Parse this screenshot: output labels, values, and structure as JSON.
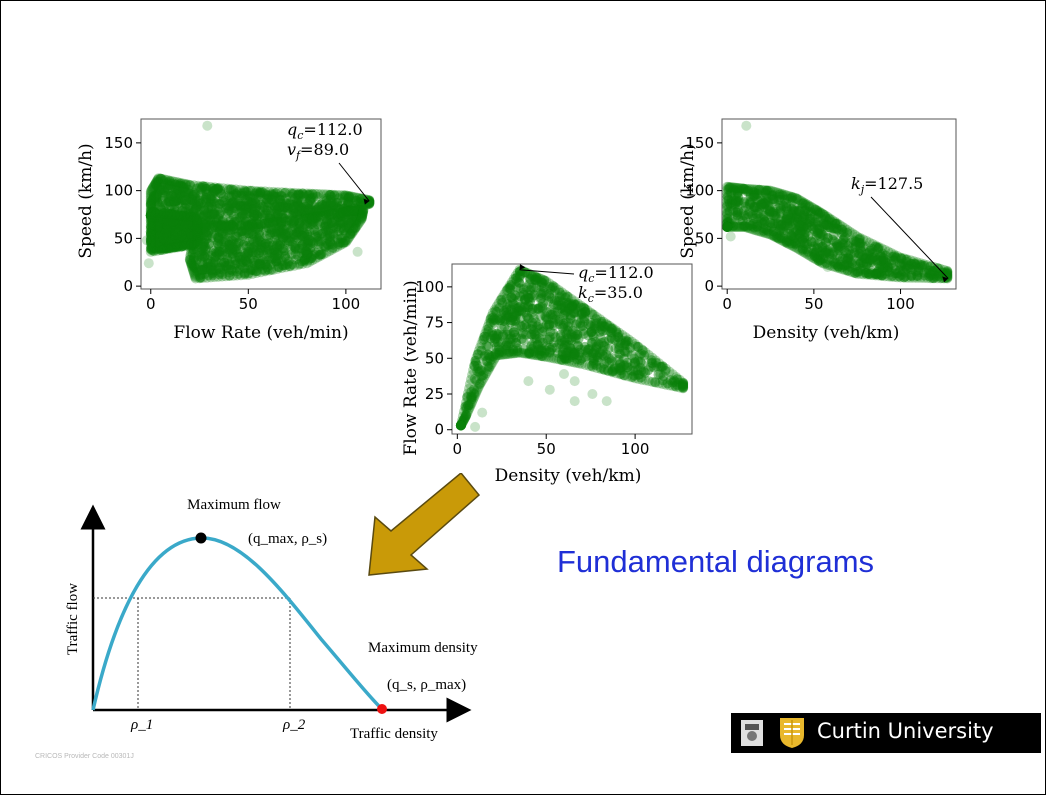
{
  "slide": {
    "title": "Fundamental diagrams",
    "cricos": "CRICOS Provider Code 00301J",
    "logo_text": "Curtin University",
    "colors": {
      "title": "#1f2fd6",
      "points": "#0a800a",
      "curve": "#3aa9c9",
      "arrow": "#c99a08"
    }
  },
  "chart_data": [
    {
      "type": "scatter",
      "name_id": "speed-flow",
      "xlabel": "Flow Rate (veh/min)",
      "ylabel": "Speed (km/h)",
      "xlim": [
        -5,
        118
      ],
      "ylim": [
        -3,
        175
      ],
      "xticks": [
        0,
        50,
        100
      ],
      "yticks": [
        0,
        50,
        100,
        150
      ],
      "annotation": {
        "lines": [
          "q_c=112.0",
          "v_f=89.0"
        ],
        "target": [
          112,
          89
        ]
      },
      "outliers": [
        [
          29,
          168
        ],
        [
          21,
          45
        ],
        [
          13,
          44
        ],
        [
          0,
          62
        ],
        [
          -2,
          48
        ],
        [
          -1,
          24
        ],
        [
          44,
          30
        ],
        [
          6,
          38
        ],
        [
          106,
          36
        ]
      ],
      "regions": [
        {
          "x": [
            0,
            0,
            4,
            20,
            50,
            80,
            100,
            112,
            112,
            100,
            70,
            40,
            12,
            0
          ],
          "y": [
            74,
            99,
            113,
            106,
            100,
            97,
            95,
            90,
            86,
            78,
            68,
            62,
            66,
            74
          ]
        },
        {
          "x": [
            23,
            50,
            80,
            100,
            109,
            108,
            100,
            80,
            50,
            23,
            20
          ],
          "y": [
            64,
            64,
            70,
            78,
            80,
            70,
            46,
            24,
            12,
            8,
            28
          ]
        },
        {
          "x": [
            0,
            24,
            24,
            0
          ],
          "y": [
            36,
            44,
            72,
            78
          ]
        }
      ]
    },
    {
      "type": "scatter",
      "name_id": "flow-density",
      "xlabel": "Density (veh/km)",
      "ylabel": "Flow Rate (veh/min)",
      "xlim": [
        -3,
        132
      ],
      "ylim": [
        -3,
        116
      ],
      "xticks": [
        0,
        50,
        100
      ],
      "yticks": [
        0,
        25,
        50,
        75,
        100
      ],
      "annotation": {
        "lines": [
          "q_c=112.0",
          "k_c=35.0"
        ],
        "target": [
          35,
          112
        ]
      },
      "outliers": [
        [
          10,
          2
        ],
        [
          14,
          12
        ],
        [
          66,
          34
        ],
        [
          76,
          25
        ],
        [
          66,
          20
        ],
        [
          60,
          39
        ],
        [
          52,
          28
        ],
        [
          40,
          34
        ],
        [
          84,
          20
        ],
        [
          70,
          78
        ]
      ],
      "regions": [
        {
          "x": [
            2,
            10,
            20,
            35,
            50,
            75,
            100,
            127,
            127,
            100,
            70,
            50,
            35,
            22,
            12,
            5,
            2
          ],
          "y": [
            3,
            48,
            82,
            112,
            104,
            82,
            60,
            33,
            29,
            36,
            46,
            51,
            54,
            52,
            30,
            10,
            3
          ]
        }
      ]
    },
    {
      "type": "scatter",
      "name_id": "speed-density",
      "xlabel": "Density (veh/km)",
      "ylabel": "Speed (km/h)",
      "xlim": [
        -3,
        132
      ],
      "ylim": [
        -3,
        175
      ],
      "xticks": [
        0,
        50,
        100
      ],
      "yticks": [
        0,
        50,
        100,
        150
      ],
      "annotation": {
        "lines": [
          "k_j=127.5"
        ],
        "target": [
          127.5,
          8
        ]
      },
      "outliers": [
        [
          11,
          168
        ],
        [
          70,
          33
        ],
        [
          80,
          42
        ],
        [
          58,
          20
        ],
        [
          22,
          60
        ],
        [
          2,
          52
        ],
        [
          90,
          28
        ],
        [
          100,
          20
        ]
      ],
      "regions": [
        {
          "x": [
            0,
            0,
            10,
            25,
            40,
            55,
            75,
            100,
            127,
            127,
            100,
            75,
            55,
            40,
            25,
            10,
            0
          ],
          "y": [
            62,
            104,
            102,
            100,
            92,
            76,
            52,
            30,
            16,
            8,
            9,
            13,
            24,
            40,
            54,
            62,
            62
          ]
        }
      ]
    },
    {
      "type": "line",
      "name_id": "fundamental-diagram",
      "xlabel": "Traffic density",
      "ylabel": "Traffic flow",
      "peak_label": "Maximum flow",
      "peak_point": "(q_max, ρ_s)",
      "end_label": "Maximum density",
      "end_point": "(q_s, ρ_max)",
      "xtick_labels": [
        "ρ_1",
        "ρ_2"
      ]
    }
  ]
}
